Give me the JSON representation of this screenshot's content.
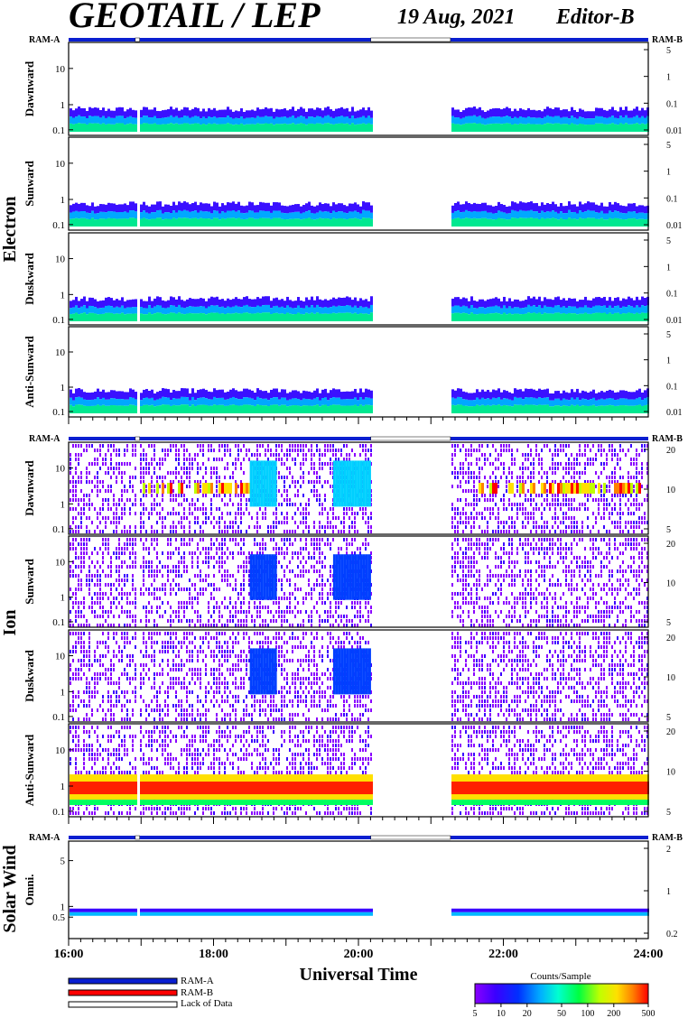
{
  "header": {
    "title": "GEOTAIL / LEP",
    "date": "19 Aug, 2021",
    "editor": "Editor-B"
  },
  "ram_labels": {
    "a": "RAM-A",
    "b": "RAM-B"
  },
  "legend": {
    "ram_a": "RAM-A",
    "ram_b": "RAM-B",
    "lack": "Lack of Data",
    "colorbar_title": "Counts/Sample",
    "colorbar_ticks": [
      "5",
      "10",
      "20",
      "50",
      "100",
      "200",
      "500"
    ],
    "colors": {
      "ram_a": "#0a1fd0",
      "ram_b": "#ff0000",
      "lack": "#ffffff"
    }
  },
  "chart_data": {
    "type": "heatmap",
    "xlabel": "Universal Time",
    "xticks": [
      "16:00",
      "18:00",
      "20:00",
      "22:00",
      "24:00"
    ],
    "x_range_hours": [
      16,
      24
    ],
    "data_gaps_hours": [
      [
        16.92,
        16.98
      ],
      [
        20.17,
        21.27
      ]
    ],
    "groups": [
      {
        "name": "Electron",
        "left_ticks": [
          "10",
          "1",
          "0.1"
        ],
        "right_ticks": [
          "5",
          "1",
          "0.1",
          "0.01"
        ],
        "panels": [
          "Dawnward",
          "Sunward",
          "Duskward",
          "Anti-Sunward"
        ]
      },
      {
        "name": "Ion",
        "left_ticks": [
          "10",
          "1",
          "0.1"
        ],
        "right_ticks": [
          "20",
          "10",
          "5"
        ],
        "panels": [
          "Dawnward",
          "Sunward",
          "Duskward",
          "Anti-Sunward"
        ]
      },
      {
        "name": "Solar Wind",
        "left_ticks": [
          "5",
          "1",
          "0.5"
        ],
        "right_ticks": [
          "2",
          "1",
          "0.2"
        ],
        "panels": [
          "Omni."
        ]
      }
    ],
    "colorbar": {
      "title": "Counts/Sample",
      "min": 5,
      "max": 500,
      "scale": "log"
    }
  }
}
